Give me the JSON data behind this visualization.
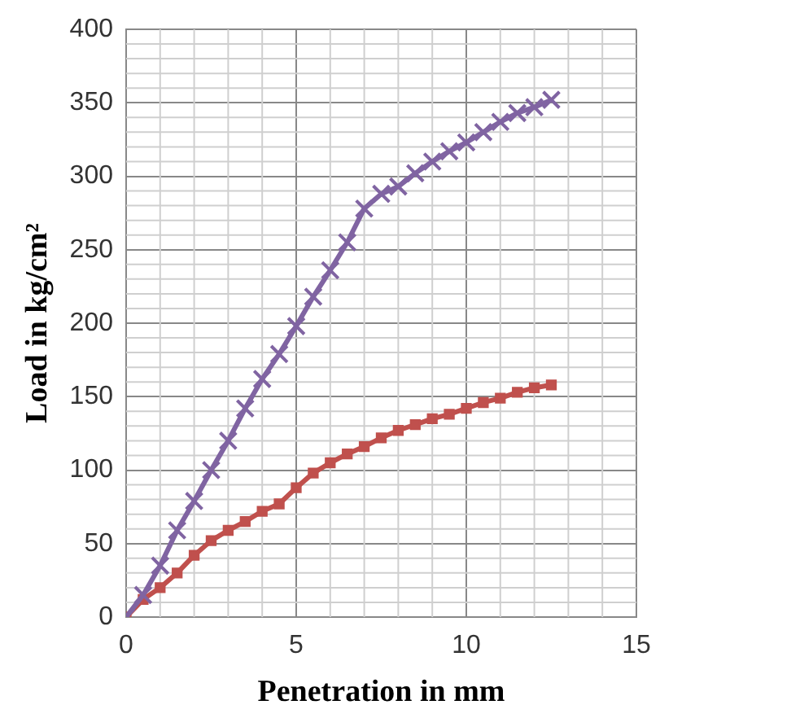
{
  "chart_data": {
    "type": "line",
    "xlabel": "Penetration in mm",
    "ylabel": "Load in kg/cm²",
    "xlim": [
      0,
      15
    ],
    "xticks": [
      0,
      5,
      10,
      15
    ],
    "ylim": [
      0,
      400
    ],
    "yticks": [
      0,
      50,
      100,
      150,
      200,
      250,
      300,
      350,
      400
    ],
    "grid": true,
    "legend": false,
    "series": [
      {
        "color": "#c0504d",
        "marker": "square",
        "x": [
          0,
          0.5,
          1,
          1.5,
          2,
          2.5,
          3,
          3.5,
          4,
          4.5,
          5,
          5.5,
          6,
          6.5,
          7,
          7.5,
          8,
          8.5,
          9,
          9.5,
          10,
          10.5,
          11,
          11.5,
          12,
          12.5
        ],
        "values": [
          0,
          12,
          20,
          30,
          42,
          52,
          59,
          65,
          72,
          77,
          88,
          98,
          105,
          111,
          116,
          122,
          127,
          131,
          135,
          138,
          142,
          146,
          149,
          153,
          156,
          158
        ]
      },
      {
        "color": "#8064a2",
        "marker": "cross",
        "x": [
          0,
          0.5,
          1,
          1.5,
          2,
          2.5,
          3,
          3.5,
          4,
          4.5,
          5,
          5.5,
          6,
          6.5,
          7,
          7.5,
          8,
          8.5,
          9,
          9.5,
          10,
          10.5,
          11,
          11.5,
          12,
          12.5
        ],
        "values": [
          0,
          15,
          35,
          59,
          79,
          100,
          120,
          142,
          162,
          179,
          198,
          218,
          236,
          255,
          278,
          288,
          293,
          302,
          310,
          317,
          323,
          330,
          337,
          343,
          347,
          352
        ]
      }
    ]
  }
}
